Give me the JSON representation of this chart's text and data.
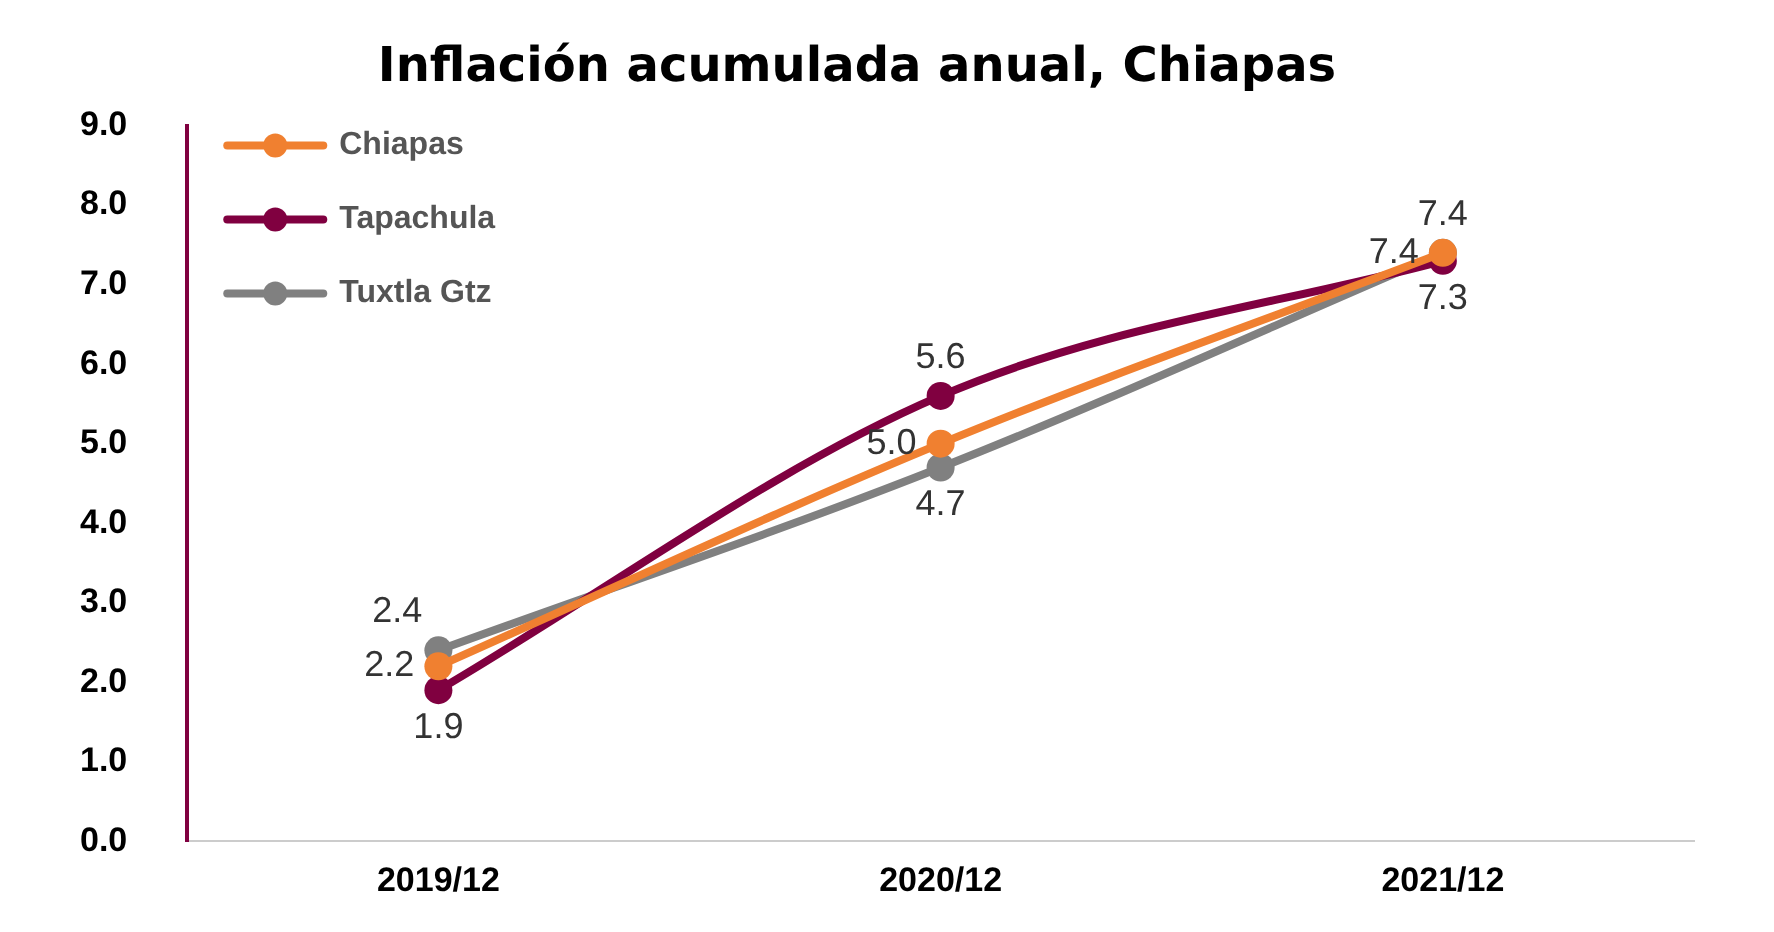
{
  "chart_data": {
    "type": "line",
    "title": "Inflación acumulada anual, Chiapas",
    "categories": [
      "2019/12",
      "2020/12",
      "2021/12"
    ],
    "series": [
      {
        "name": "Chiapas",
        "color": "#f08030",
        "values": [
          2.2,
          5.0,
          7.4
        ],
        "value_labels": [
          "2.2",
          "5.0",
          "7.4"
        ]
      },
      {
        "name": "Tapachula",
        "color": "#800040",
        "values": [
          1.9,
          5.6,
          7.3
        ],
        "value_labels": [
          "1.9",
          "5.6",
          "7.3"
        ]
      },
      {
        "name": "Tuxtla Gtz",
        "color": "#808080",
        "values": [
          2.4,
          4.7,
          7.4
        ],
        "value_labels": [
          "2.4",
          "4.7",
          "7.4"
        ]
      }
    ],
    "ylim": [
      0,
      9
    ],
    "yticks": [
      {
        "value": 0,
        "label": "0.0"
      },
      {
        "value": 1,
        "label": "1.0"
      },
      {
        "value": 2,
        "label": "2.0"
      },
      {
        "value": 3,
        "label": "3.0"
      },
      {
        "value": 4,
        "label": "4.0"
      },
      {
        "value": 5,
        "label": "5.0"
      },
      {
        "value": 6,
        "label": "6.0"
      },
      {
        "value": 7,
        "label": "7.0"
      },
      {
        "value": 8,
        "label": "8.0"
      },
      {
        "value": 9,
        "label": "9.0"
      }
    ],
    "grid": false,
    "legend": "top left",
    "marker": "circle"
  }
}
